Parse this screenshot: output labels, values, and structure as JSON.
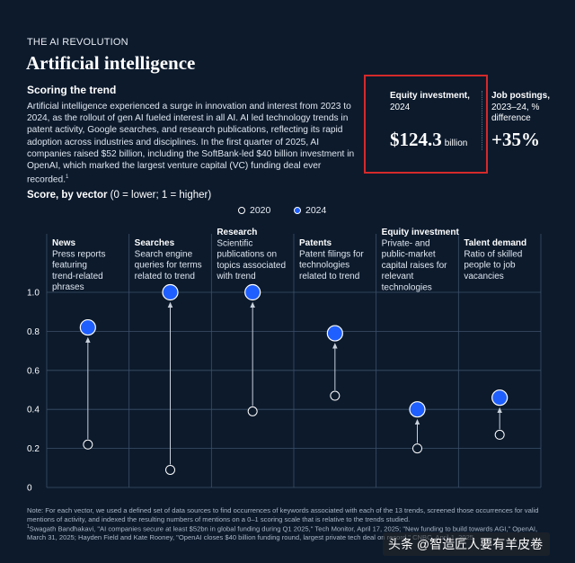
{
  "header": {
    "eyebrow": "THE AI REVOLUTION",
    "title": "Artificial intelligence",
    "section_title": "Scoring the trend",
    "body": "Artificial intelligence experienced a surge in innovation and interest from 2023 to 2024, as the rollout of gen AI fueled interest in all AI. AI led technology trends in patent activity, Google searches, and research publications, reflecting its rapid adoption across industries and disciplines. In the first quarter of 2025, AI companies raised $52 billion, including the SoftBank-led $40 billion investment in OpenAI, which marked the largest venture capital (VC) funding deal ever recorded.",
    "body_footnote_mark": "1"
  },
  "kpis": {
    "equity": {
      "label_bold": "Equity investment,",
      "label_year": "2024",
      "value": "$124.3",
      "unit": "billion"
    },
    "jobs": {
      "label_bold": "Job postings,",
      "label_rest": "2023–24, % difference",
      "value": "+35%"
    },
    "highlight_color": "#d42a2a"
  },
  "chart_title": {
    "bold": "Score, by vector",
    "rest": " (0 = lower; 1 = higher)"
  },
  "legend": {
    "items": [
      {
        "label": "2020",
        "style": "hollow"
      },
      {
        "label": "2024",
        "style": "filled"
      }
    ]
  },
  "chart_data": {
    "type": "scatter",
    "title": "Score, by vector",
    "subtitle": "(0 = lower; 1 = higher)",
    "ylim": [
      0,
      1
    ],
    "yticks": [
      "0",
      "0.2",
      "0.4",
      "0.6",
      "0.8",
      "1.0"
    ],
    "grid": true,
    "legend_position": "top",
    "categories": [
      {
        "name": "News",
        "description": "Press reports featuring trend-related phrases"
      },
      {
        "name": "Searches",
        "description": "Search engine queries for terms related to trend"
      },
      {
        "name": "Research",
        "description": "Scientific publications on topics associated with trend"
      },
      {
        "name": "Patents",
        "description": "Patent filings for technologies related to trend"
      },
      {
        "name": "Equity investment",
        "description": "Private- and public-market capital raises for relevant technologies"
      },
      {
        "name": "Talent demand",
        "description": "Ratio of skilled people to job vacancies"
      }
    ],
    "series": [
      {
        "name": "2020",
        "values": [
          0.22,
          0.09,
          0.39,
          0.47,
          0.2,
          0.27
        ]
      },
      {
        "name": "2024",
        "values": [
          0.82,
          1.0,
          1.0,
          0.79,
          0.4,
          0.46
        ]
      }
    ],
    "colors": {
      "series_2024": "#1f5fff",
      "marker_2020": "#ffffff",
      "background": "#0c1a2c",
      "grid": "#3c5068",
      "arrow": "#c8d0da"
    }
  },
  "note": {
    "text": "Note: For each vector, we used a defined set of data sources to find occurrences of keywords associated with each of the 13 trends, screened those occurrences for valid mentions of activity, and indexed the resulting numbers of mentions on a 0–1 scoring scale that is relative to the trends studied.",
    "footnote_mark": "1",
    "source": "Swagath Bandhakavi, \"AI companies secure at least $52bn in global funding during Q1 2025,\" Tech Monitor, April 17, 2025; \"New funding to build towards AGI,\" OpenAI, March 31, 2025; Hayden Field and Kate Rooney, \"OpenAI closes $40 billion funding round, largest private tech deal on record,\" CNBC, April 1, 2025."
  },
  "watermark": "头条 @智造匠人要有羊皮卷"
}
